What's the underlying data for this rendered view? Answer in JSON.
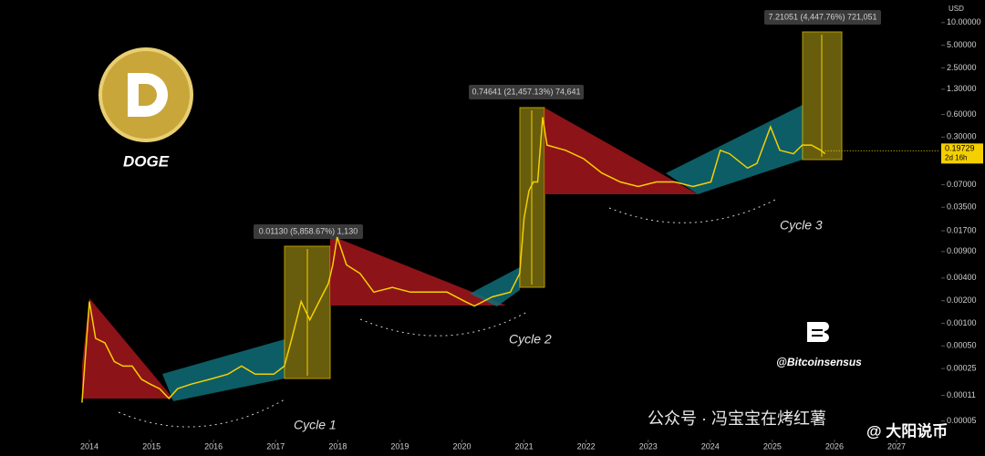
{
  "chart_data": {
    "type": "line",
    "title": "DOGE",
    "currency": "USD",
    "log_scale": true,
    "x": [
      2013.88,
      2014,
      2014.1,
      2014.25,
      2014.4,
      2014.54,
      2014.69,
      2014.84,
      2014.98,
      2015.13,
      2015.28,
      2015.42,
      2015.64,
      2015.94,
      2016.23,
      2016.45,
      2016.67,
      2016.97,
      2017.14,
      2017.26,
      2017.41,
      2017.55,
      2017.7,
      2017.85,
      2017.92,
      2017.99,
      2018.14,
      2018.36,
      2018.58,
      2018.88,
      2019.17,
      2019.46,
      2019.76,
      2020.05,
      2020.2,
      2020.49,
      2020.78,
      2020.93,
      2021.0,
      2021.08,
      2021.15,
      2021.22,
      2021.3,
      2021.37,
      2021.67,
      2021.96,
      2022.25,
      2022.55,
      2022.84,
      2023.13,
      2023.43,
      2023.72,
      2024.01,
      2024.16,
      2024.31,
      2024.6,
      2024.75,
      2024.97,
      2025.12,
      2025.34,
      2025.48,
      2025.63,
      2025.78,
      2025.85
    ],
    "series": [
      {
        "color": "#f5d000",
        "values": [
          8.8e-05,
          0.00195,
          0.00063,
          0.00055,
          0.00031,
          0.00027,
          0.00027,
          0.00018,
          0.000155,
          0.000135,
          0.0001,
          0.000135,
          0.000155,
          0.00018,
          0.00021,
          0.00027,
          0.00021,
          0.00021,
          0.00027,
          0.00063,
          0.00195,
          0.00111,
          0.00195,
          0.0034,
          0.006,
          0.014,
          0.006,
          0.0046,
          0.0026,
          0.003,
          0.0026,
          0.0026,
          0.0026,
          0.00195,
          0.0017,
          0.00225,
          0.0026,
          0.0046,
          0.025,
          0.058,
          0.076,
          0.076,
          0.55,
          0.235,
          0.2,
          0.155,
          0.1,
          0.076,
          0.066,
          0.076,
          0.076,
          0.066,
          0.076,
          0.2,
          0.18,
          0.116,
          0.134,
          0.41,
          0.2,
          0.18,
          0.235,
          0.235,
          0.2,
          0.18
        ]
      }
    ],
    "xlim": [
      2012.56,
      2027.69
    ],
    "xticks": [
      2014,
      2015,
      2016,
      2017,
      2018,
      2019,
      2020,
      2021,
      2022,
      2023,
      2024,
      2025,
      2026,
      2027
    ],
    "ylim": [
      3e-05,
      20
    ],
    "yticks": [
      {
        "value": 10,
        "label": "10.00000"
      },
      {
        "value": 5,
        "label": "5.00000"
      },
      {
        "value": 2.5,
        "label": "2.50000"
      },
      {
        "value": 1.3,
        "label": "1.30000"
      },
      {
        "value": 0.6,
        "label": "0.60000"
      },
      {
        "value": 0.3,
        "label": "0.30000"
      },
      {
        "value": 0.07,
        "label": "0.07000"
      },
      {
        "value": 0.035,
        "label": "0.03500"
      },
      {
        "value": 0.017,
        "label": "0.01700"
      },
      {
        "value": 0.009,
        "label": "0.00900"
      },
      {
        "value": 0.004,
        "label": "0.00400"
      },
      {
        "value": 0.002,
        "label": "0.00200"
      },
      {
        "value": 0.001,
        "label": "0.00100"
      },
      {
        "value": 0.0005,
        "label": "0.00050"
      },
      {
        "value": 0.00025,
        "label": "0.00025"
      },
      {
        "value": 0.00011,
        "label": "0.00011"
      },
      {
        "value": 5e-05,
        "label": "0.00005"
      }
    ],
    "last_price": {
      "value": 0.19729,
      "label": "0.19729",
      "countdown": "2d 16h"
    },
    "measures": [
      "0.01130 (5,858.67%) 1,130",
      "0.74641 (21,457.13%) 74,641",
      "7.21051 (4,447.76%) 721,051"
    ],
    "cycles": [
      "Cycle 1",
      "Cycle 2",
      "Cycle 3"
    ],
    "credit": "@Bitcoinsensus",
    "watermarks": [
      "公众号 · 冯宝宝在烤红薯",
      "@ 大阳说币"
    ]
  }
}
